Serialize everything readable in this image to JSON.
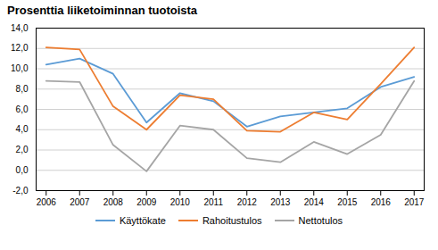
{
  "chart_data": {
    "type": "line",
    "title": "Prosenttia liiketoiminnan tuotoista",
    "x": [
      2006,
      2007,
      2008,
      2009,
      2010,
      2011,
      2012,
      2013,
      2014,
      2015,
      2016,
      2017
    ],
    "series": [
      {
        "name": "Käyttökate",
        "color": "#5b9bd5",
        "values": [
          10.4,
          11.0,
          9.5,
          4.7,
          7.6,
          6.8,
          4.3,
          5.3,
          5.7,
          6.1,
          8.2,
          9.2
        ]
      },
      {
        "name": "Rahoitustulos",
        "color": "#ed7d31",
        "values": [
          12.1,
          11.9,
          6.3,
          4.0,
          7.4,
          7.0,
          3.9,
          3.8,
          5.7,
          5.0,
          8.5,
          12.1
        ]
      },
      {
        "name": "Nettotulos",
        "color": "#a5a5a5",
        "values": [
          8.8,
          8.7,
          2.5,
          -0.1,
          4.4,
          4.0,
          1.2,
          0.8,
          2.8,
          1.6,
          3.5,
          8.8
        ]
      }
    ],
    "xlim": [
      2005.7,
      2017.3
    ],
    "xticks": [
      2006,
      2007,
      2008,
      2009,
      2010,
      2011,
      2012,
      2013,
      2014,
      2015,
      2016,
      2017
    ],
    "ylim": [
      -2.0,
      14.0
    ],
    "yticks": [
      {
        "value": -2.0,
        "label": "-2,0"
      },
      {
        "value": 0.0,
        "label": "0,0"
      },
      {
        "value": 2.0,
        "label": "2,0"
      },
      {
        "value": 4.0,
        "label": "4,0"
      },
      {
        "value": 6.0,
        "label": "6,0"
      },
      {
        "value": 8.0,
        "label": "8,0"
      },
      {
        "value": 10.0,
        "label": "10,0"
      },
      {
        "value": 12.0,
        "label": "12,0"
      },
      {
        "value": 14.0,
        "label": "14,0"
      }
    ],
    "grid": true,
    "legend": "bottom"
  }
}
